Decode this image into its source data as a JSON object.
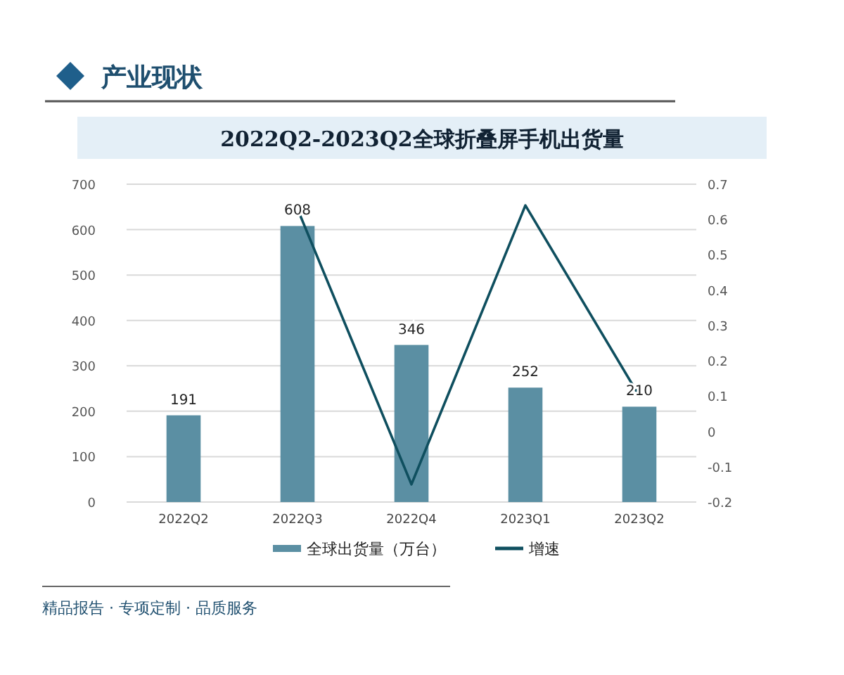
{
  "chart_data": {
    "type": "bar",
    "title": "2022Q2-2023Q2全球折叠屏手机出货量",
    "subtitle": "产业现状",
    "categories": [
      "2022Q2",
      "2022Q3",
      "2022Q4",
      "2023Q1",
      "2023Q2"
    ],
    "series": [
      {
        "name": "全球出货量（万台）",
        "color": "#5b8fa3",
        "values": [
          191,
          608,
          346,
          252,
          210
        ],
        "value_labels": [
          "191",
          "608",
          "346",
          "252",
          "210"
        ]
      },
      {
        "name": "增速",
        "type": "line",
        "axis": "y2",
        "color": "#0f4f5f",
        "values": [
          null,
          0.63,
          -0.15,
          0.64,
          0.1
        ]
      }
    ],
    "ylim": [
      0,
      700
    ],
    "yticks": [
      0,
      100,
      200,
      300,
      400,
      500,
      600,
      700
    ],
    "y2lim": [
      -0.2,
      0.7
    ],
    "y2ticks": [
      -0.2,
      -0.1,
      0,
      0.1,
      0.2,
      0.3,
      0.4,
      0.5,
      0.6,
      0.7
    ],
    "grid": "y",
    "legend": "bottom",
    "marker": "none",
    "line_style": "solid",
    "annotations": [
      "精品报告 · 专项定制 · 品质服务"
    ]
  }
}
